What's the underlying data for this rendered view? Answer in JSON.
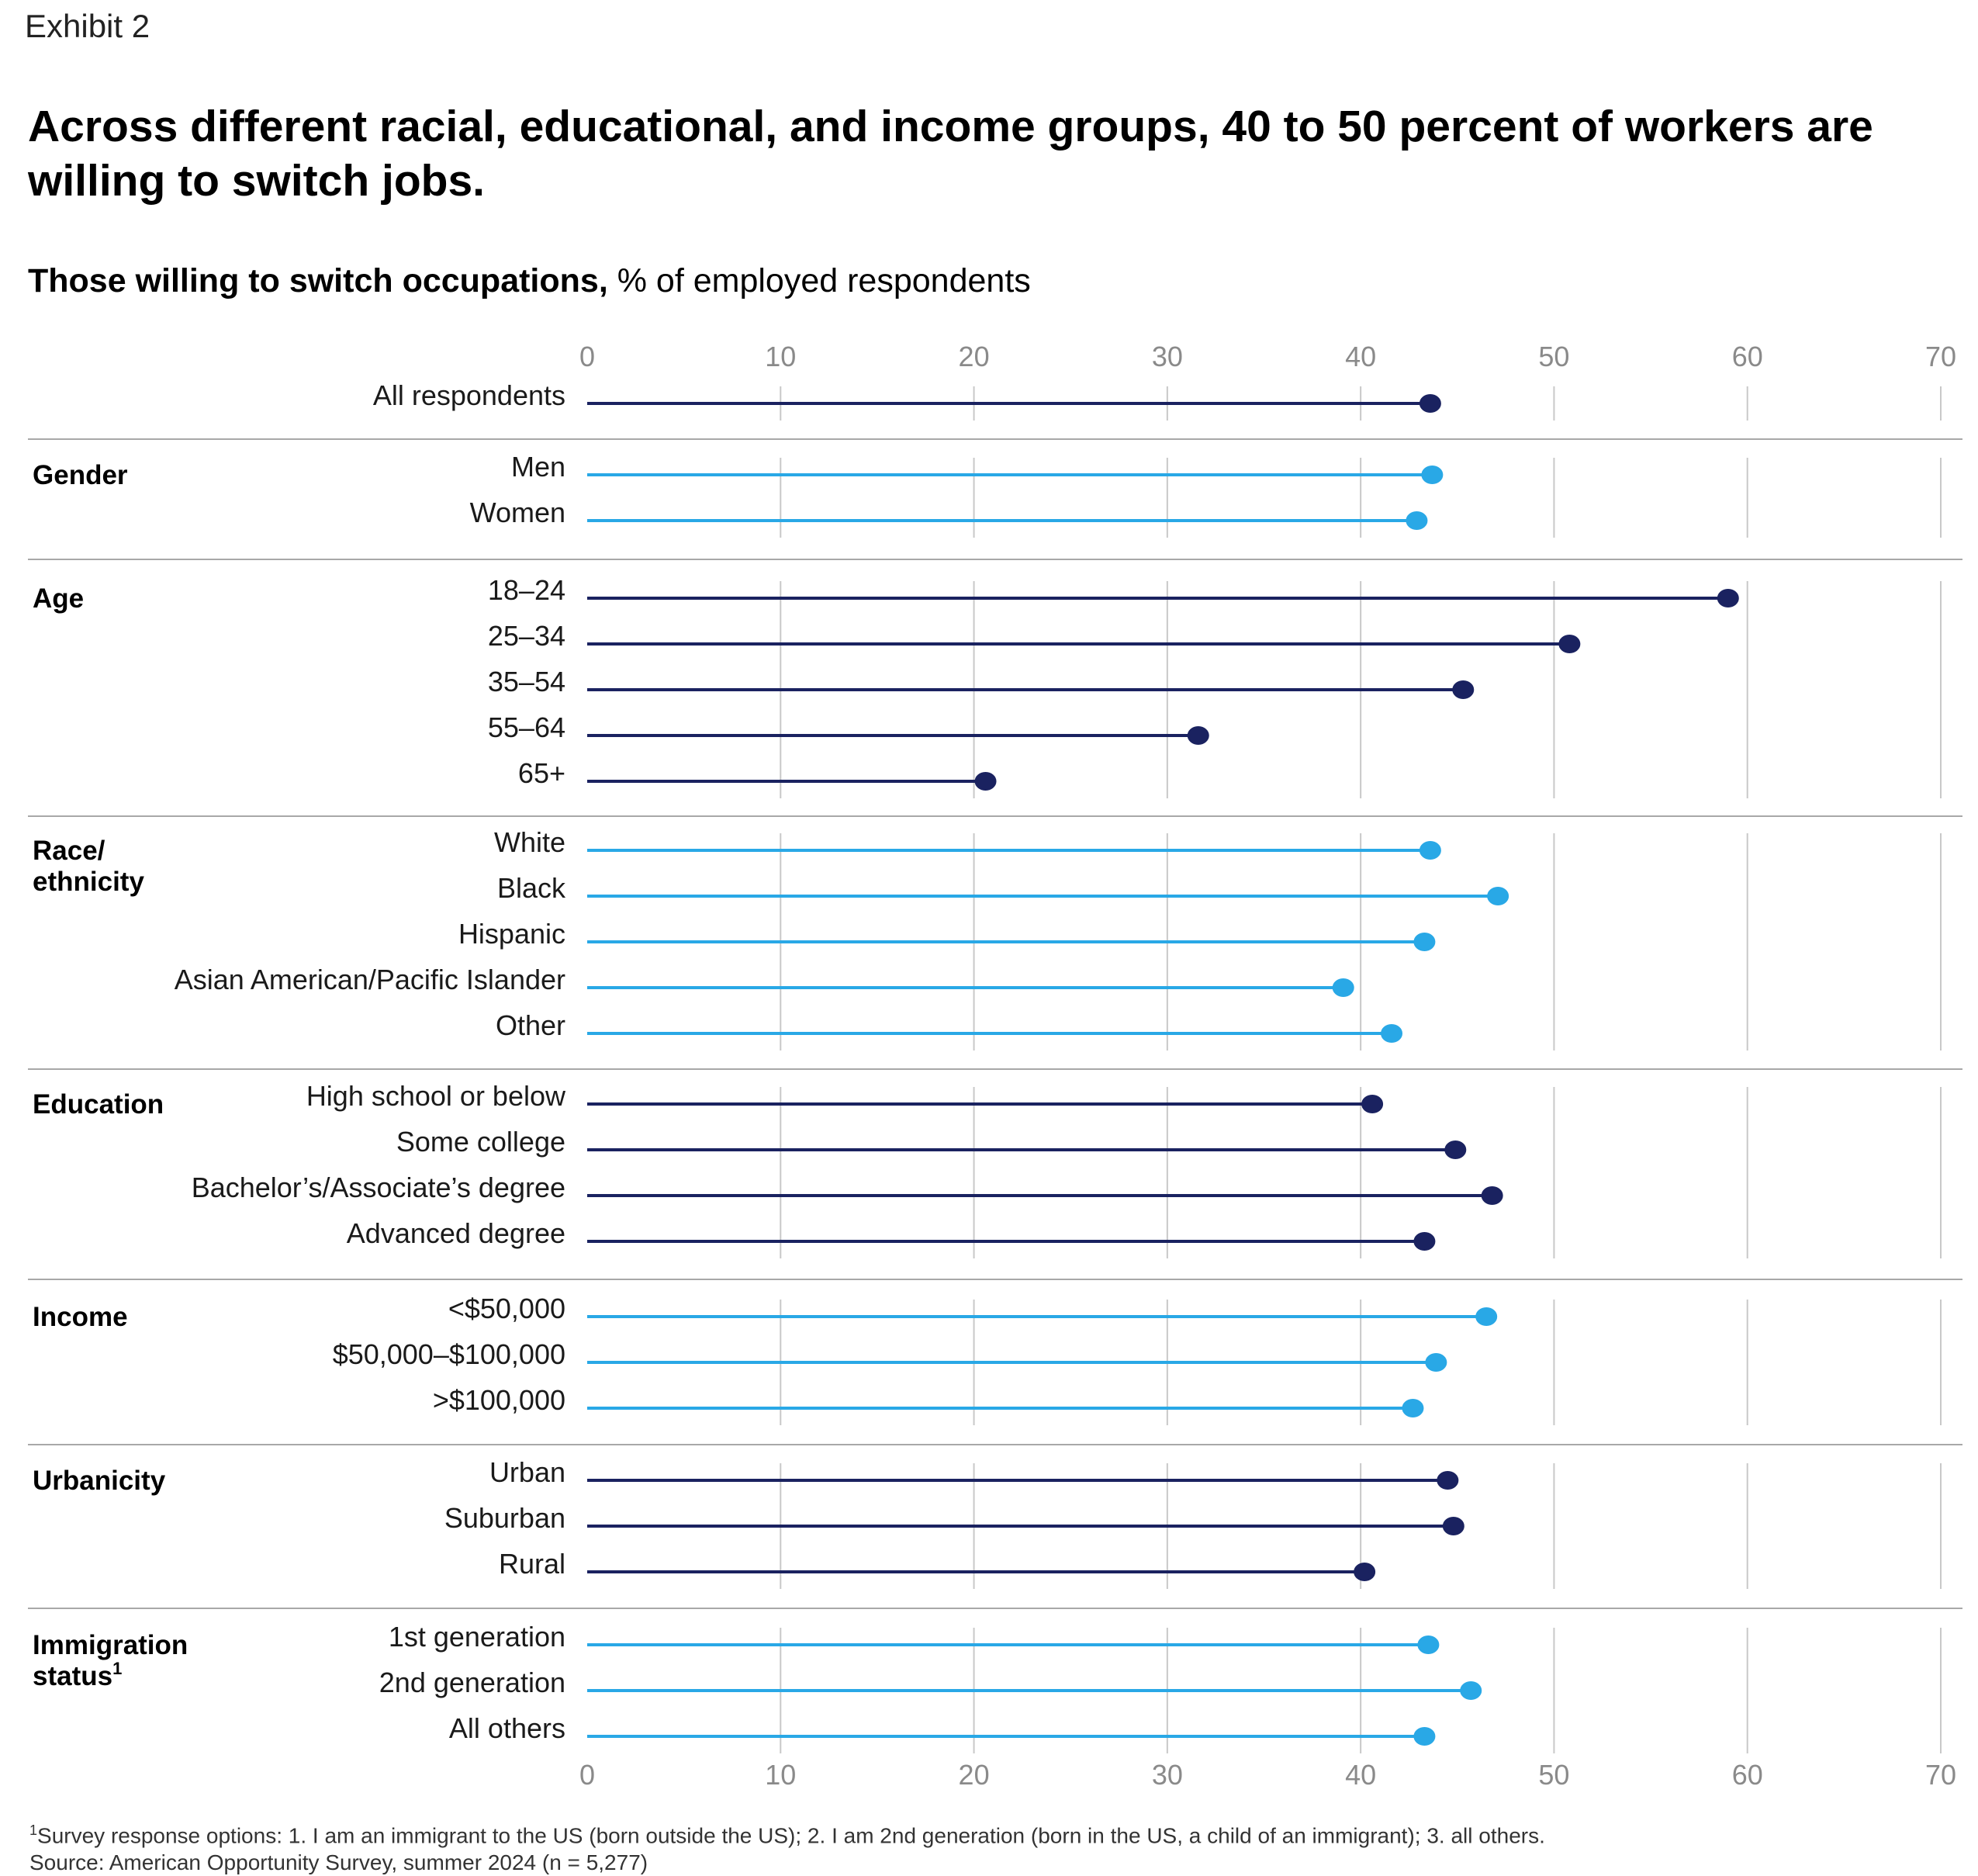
{
  "exhibit_label": "Exhibit 2",
  "title": "Across different racial, educational, and income groups, 40 to 50 percent of workers are willing to switch jobs.",
  "subtitle": {
    "bold": "Those willing to switch occupations,",
    "regular": " % of employed respondents"
  },
  "footnote": {
    "marker": "1",
    "text": "Survey response options: 1. I am an immigrant to the US (born outside the US); 2. I am 2nd generation (born in the US, a child of an immigrant); 3. all others.",
    "source": "Source: American Opportunity Survey, summer 2024 (n = 5,277)"
  },
  "colors": {
    "dark": "#1a2260",
    "light": "#29a8e6",
    "grid": "#c8c8c8",
    "separator": "#a8a8a8"
  },
  "chart_data": {
    "type": "lollipop",
    "xlim": [
      0,
      70
    ],
    "ticks": [
      "0",
      "10",
      "20",
      "30",
      "40",
      "50",
      "60",
      "70"
    ],
    "xlabel": "",
    "ylabel": "",
    "groups": [
      {
        "name": "",
        "color": "dark",
        "items": [
          {
            "label": "All respondents",
            "value": 43.6
          }
        ]
      },
      {
        "name": "Gender",
        "color": "light",
        "items": [
          {
            "label": "Men",
            "value": 43.7
          },
          {
            "label": "Women",
            "value": 42.9
          }
        ]
      },
      {
        "name": "Age",
        "color": "dark",
        "items": [
          {
            "label": "18–24",
            "value": 59.0
          },
          {
            "label": "25–34",
            "value": 50.8
          },
          {
            "label": "35–54",
            "value": 45.3
          },
          {
            "label": "55–64",
            "value": 31.6
          },
          {
            "label": "65+",
            "value": 20.6
          }
        ]
      },
      {
        "name": "Race/ ethnicity",
        "color": "light",
        "items": [
          {
            "label": "White",
            "value": 43.6
          },
          {
            "label": "Black",
            "value": 47.1
          },
          {
            "label": "Hispanic",
            "value": 43.3
          },
          {
            "label": "Asian American/Pacific Islander",
            "value": 39.1
          },
          {
            "label": "Other",
            "value": 41.6
          }
        ]
      },
      {
        "name": "Education",
        "color": "dark",
        "items": [
          {
            "label": "High school or below",
            "value": 40.6
          },
          {
            "label": "Some college",
            "value": 44.9
          },
          {
            "label": "Bachelor’s/Associate’s degree",
            "value": 46.8
          },
          {
            "label": "Advanced degree",
            "value": 43.3
          }
        ]
      },
      {
        "name": "Income",
        "color": "light",
        "items": [
          {
            "label": "<$50,000",
            "value": 46.5
          },
          {
            "label": "$50,000–$100,000",
            "value": 43.9
          },
          {
            "label": ">$100,000",
            "value": 42.7
          }
        ]
      },
      {
        "name": "Urbanicity",
        "color": "dark",
        "items": [
          {
            "label": "Urban",
            "value": 44.5
          },
          {
            "label": "Suburban",
            "value": 44.8
          },
          {
            "label": "Rural",
            "value": 40.2
          }
        ]
      },
      {
        "name": "Immigration status",
        "footnote_marker": "1",
        "color": "light",
        "items": [
          {
            "label": "1st generation",
            "value": 43.5
          },
          {
            "label": "2nd generation",
            "value": 45.7
          },
          {
            "label": "All others",
            "value": 43.3
          }
        ]
      }
    ]
  }
}
